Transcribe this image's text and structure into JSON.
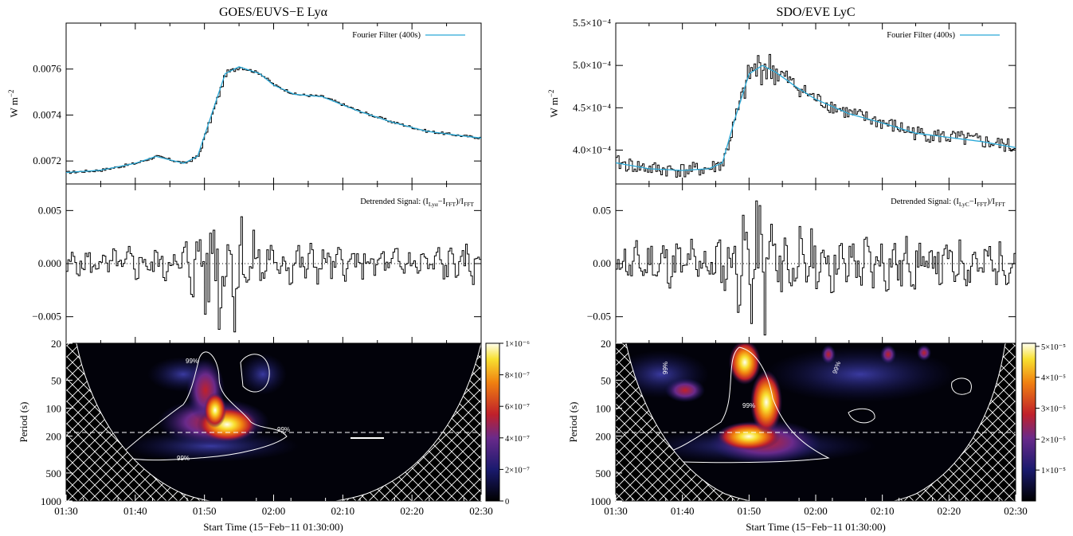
{
  "colors": {
    "filter": "#2aa9d8",
    "signal": "#000000",
    "contour": "#ffffff"
  },
  "chart_data": [
    {
      "type": "line",
      "panel": "left-top",
      "title": "GOES/EUVS−E Lyα",
      "ylabel": "W m⁻²",
      "ylim": [
        0.0071,
        0.0078
      ],
      "ytick_labels": [
        "0.0072",
        "0.0074",
        "0.0076"
      ],
      "yticks": [
        0.0072,
        0.0074,
        0.0076
      ],
      "legend": "Fourier Filter (400s)",
      "legend_position": "top-right",
      "x": [
        "01:30",
        "01:35",
        "01:40",
        "01:43",
        "01:47",
        "01:49",
        "01:51",
        "01:53",
        "01:55",
        "01:58",
        "02:00",
        "02:03",
        "02:07",
        "02:12",
        "02:17",
        "02:22",
        "02:27",
        "02:30"
      ],
      "series": [
        {
          "name": "Fourier Filter (400s)",
          "values": [
            0.00715,
            0.00716,
            0.00719,
            0.00722,
            0.00719,
            0.00722,
            0.0074,
            0.00758,
            0.00761,
            0.00758,
            0.00753,
            0.00749,
            0.00748,
            0.00742,
            0.00737,
            0.00733,
            0.00731,
            0.0073
          ]
        }
      ]
    },
    {
      "type": "line",
      "panel": "left-middle",
      "annotation": "Detrended Signal: (I_Lyα−I_FFT)/I_FFT",
      "ylim": [
        -0.0075,
        0.0075
      ],
      "ytick_labels": [
        "−0.005",
        "0.000",
        "0.005"
      ],
      "yticks": [
        -0.005,
        0.0,
        0.005
      ],
      "amplitude_profile": {
        "x": [
          "01:30",
          "01:40",
          "01:47",
          "01:50",
          "01:53",
          "01:56",
          "02:00",
          "02:10",
          "02:20",
          "02:30"
        ],
        "values": [
          0.0012,
          0.0015,
          0.002,
          0.0048,
          0.007,
          0.0035,
          0.0022,
          0.0015,
          0.0015,
          0.0018
        ]
      }
    },
    {
      "type": "heatmap",
      "panel": "left-bottom",
      "xlabel": "Start Time (15−Feb−11 01:30:00)",
      "ylabel": "Period (s)",
      "x_tick_labels": [
        "01:30",
        "01:40",
        "01:50",
        "02:00",
        "02:10",
        "02:20",
        "02:30"
      ],
      "y_tick_labels": [
        "20",
        "50",
        "100",
        "200",
        "500",
        "1000"
      ],
      "yticks": [
        20,
        50,
        100,
        200,
        500,
        1000
      ],
      "ylim": [
        20,
        1000
      ],
      "yscale": "log",
      "colorbar_labels": [
        "0",
        "2×10⁻⁷",
        "4×10⁻⁷",
        "6×10⁻⁷",
        "8×10⁻⁷",
        "1×10⁻⁶"
      ],
      "contour_label": "99%",
      "peak": {
        "time": "01:53",
        "period": 160
      },
      "dashed_period": 200
    },
    {
      "type": "line",
      "panel": "right-top",
      "title": "SDO/EVE LyC",
      "ylabel": "W m⁻²",
      "ylim": [
        0.00036,
        0.00055
      ],
      "ytick_labels": [
        "4.0×10⁻⁴",
        "4.5×10⁻⁴",
        "5.0×10⁻⁴",
        "5.5×10⁻⁴"
      ],
      "yticks": [
        0.0004,
        0.00045,
        0.0005,
        0.00055
      ],
      "legend": "Fourier Filter (400s)",
      "legend_position": "top-right",
      "x": [
        "01:30",
        "01:35",
        "01:40",
        "01:44",
        "01:46",
        "01:48",
        "01:50",
        "01:52",
        "01:54",
        "01:57",
        "02:00",
        "02:05",
        "02:10",
        "02:15",
        "02:20",
        "02:25",
        "02:30"
      ],
      "series": [
        {
          "name": "Fourier Filter (400s)",
          "values": [
            0.000385,
            0.000378,
            0.000376,
            0.000378,
            0.000385,
            0.00044,
            0.00049,
            0.0005,
            0.000492,
            0.000475,
            0.00046,
            0.000443,
            0.000432,
            0.00042,
            0.000415,
            0.00041,
            0.000403
          ]
        }
      ]
    },
    {
      "type": "line",
      "panel": "right-middle",
      "annotation": "Detrended Signal: (I_LyC−I_FFT)/I_FFT",
      "ylim": [
        -0.075,
        0.075
      ],
      "ytick_labels": [
        "−0.05",
        "0.00",
        "0.05"
      ],
      "yticks": [
        -0.05,
        0.0,
        0.05
      ],
      "amplitude_profile": {
        "x": [
          "01:30",
          "01:40",
          "01:46",
          "01:49",
          "01:52",
          "01:55",
          "02:00",
          "02:10",
          "02:20",
          "02:30"
        ],
        "values": [
          0.018,
          0.022,
          0.025,
          0.045,
          0.065,
          0.035,
          0.028,
          0.025,
          0.022,
          0.02
        ]
      }
    },
    {
      "type": "heatmap",
      "panel": "right-bottom",
      "xlabel": "Start Time (15−Feb−11 01:30:00)",
      "ylabel": "Period (s)",
      "x_tick_labels": [
        "01:30",
        "01:40",
        "01:50",
        "02:00",
        "02:10",
        "02:20",
        "02:30"
      ],
      "y_tick_labels": [
        "20",
        "50",
        "100",
        "200",
        "500",
        "1000"
      ],
      "yticks": [
        20,
        50,
        100,
        200,
        500,
        1000
      ],
      "ylim": [
        20,
        1000
      ],
      "yscale": "log",
      "colorbar_labels": [
        "1×10⁻⁵",
        "2×10⁻⁵",
        "3×10⁻⁵",
        "4×10⁻⁵",
        "5×10⁻⁵"
      ],
      "contour_label": "99%",
      "peak": {
        "time": "01:52",
        "period": 80
      },
      "dashed_period": 200
    }
  ],
  "text": {
    "left_title": "GOES/EUVS−E Lyα",
    "right_title": "SDO/EVE LyC",
    "legend": "Fourier Filter (400s)",
    "ylabel_flux": "W m",
    "ylabel_exp": "−2",
    "ylabel_period": "Period (s)",
    "xlabel": "Start Time (15−Feb−11 01:30:00)",
    "detrend_prefix": "Detrended Signal: (I",
    "detrend_sub_left": "Lyα",
    "detrend_sub_right": "LyC",
    "detrend_mid": "−I",
    "detrend_fft": "FFT",
    "detrend_close": ")/I",
    "contour": "99%"
  }
}
